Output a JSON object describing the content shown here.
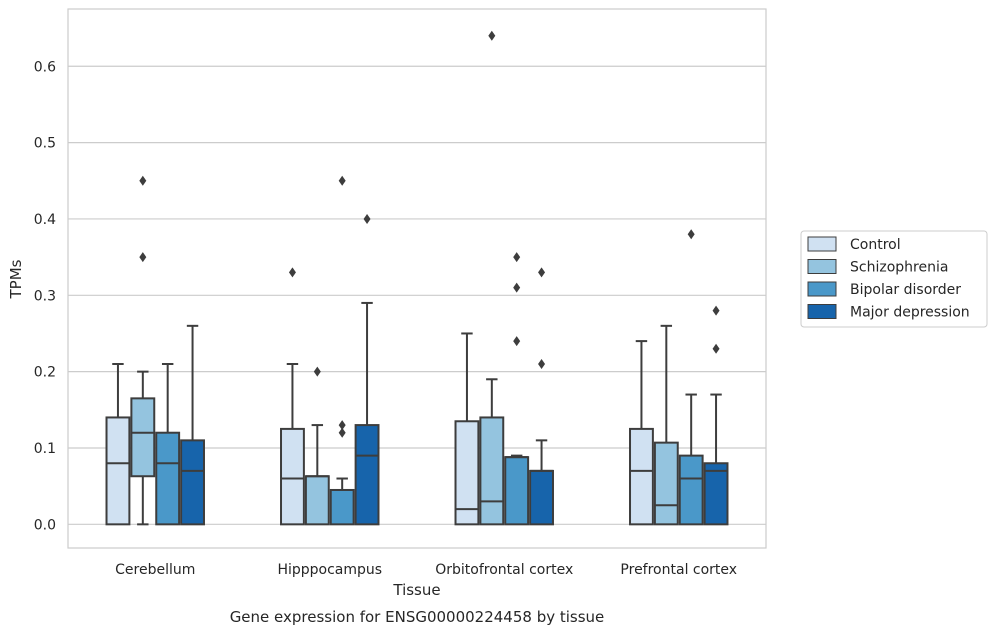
{
  "chart_data": {
    "type": "box",
    "caption": "Gene expression for ENSG00000224458 by tissue",
    "xlabel": "Tissue",
    "ylabel": "TPMs",
    "ylim": [
      -0.031,
      0.675
    ],
    "yticks": [
      "0.0",
      "0.1",
      "0.2",
      "0.3",
      "0.4",
      "0.5",
      "0.6"
    ],
    "grid": "horizontal",
    "legend_position": "right, outside plot",
    "categories": [
      "Cerebellum",
      "Hipppocampus",
      "Orbitofrontal cortex",
      "Prefrontal cortex"
    ],
    "series": [
      {
        "name": "Control",
        "color": "#d0e1f2",
        "boxes": [
          {
            "q1": 0.0,
            "median": 0.08,
            "q3": 0.14,
            "whisker_low": 0.0,
            "whisker_high": 0.21,
            "outliers": []
          },
          {
            "q1": 0.0,
            "median": 0.06,
            "q3": 0.125,
            "whisker_low": 0.0,
            "whisker_high": 0.21,
            "outliers": [
              0.33
            ]
          },
          {
            "q1": 0.0,
            "median": 0.02,
            "q3": 0.135,
            "whisker_low": 0.0,
            "whisker_high": 0.25,
            "outliers": []
          },
          {
            "q1": 0.0,
            "median": 0.07,
            "q3": 0.125,
            "whisker_low": 0.0,
            "whisker_high": 0.24,
            "outliers": []
          }
        ]
      },
      {
        "name": "Schizophrenia",
        "color": "#94c4df",
        "boxes": [
          {
            "q1": 0.063,
            "median": 0.12,
            "q3": 0.165,
            "whisker_low": 0.0,
            "whisker_high": 0.2,
            "outliers": [
              0.35,
              0.45
            ]
          },
          {
            "q1": 0.0,
            "median": 0.063,
            "q3": 0.063,
            "whisker_low": 0.0,
            "whisker_high": 0.13,
            "outliers": [
              0.2
            ]
          },
          {
            "q1": 0.0,
            "median": 0.03,
            "q3": 0.14,
            "whisker_low": 0.0,
            "whisker_high": 0.19,
            "outliers": [
              0.64
            ]
          },
          {
            "q1": 0.0,
            "median": 0.025,
            "q3": 0.107,
            "whisker_low": 0.0,
            "whisker_high": 0.26,
            "outliers": []
          }
        ]
      },
      {
        "name": "Bipolar disorder",
        "color": "#4a98c9",
        "boxes": [
          {
            "q1": 0.0,
            "median": 0.08,
            "q3": 0.12,
            "whisker_low": 0.0,
            "whisker_high": 0.21,
            "outliers": []
          },
          {
            "q1": 0.0,
            "median": 0.045,
            "q3": 0.045,
            "whisker_low": 0.0,
            "whisker_high": 0.06,
            "outliers": [
              0.12,
              0.13,
              0.45
            ]
          },
          {
            "q1": 0.0,
            "median": 0.088,
            "q3": 0.088,
            "whisker_low": 0.0,
            "whisker_high": 0.09,
            "outliers": [
              0.24,
              0.31,
              0.35
            ]
          },
          {
            "q1": 0.0,
            "median": 0.06,
            "q3": 0.09,
            "whisker_low": 0.0,
            "whisker_high": 0.17,
            "outliers": [
              0.38
            ]
          }
        ]
      },
      {
        "name": "Major depression",
        "color": "#1764ab",
        "boxes": [
          {
            "q1": 0.0,
            "median": 0.07,
            "q3": 0.11,
            "whisker_low": 0.0,
            "whisker_high": 0.26,
            "outliers": []
          },
          {
            "q1": 0.0,
            "median": 0.09,
            "q3": 0.13,
            "whisker_low": 0.0,
            "whisker_high": 0.29,
            "outliers": [
              0.4
            ]
          },
          {
            "q1": 0.0,
            "median": 0.07,
            "q3": 0.07,
            "whisker_low": 0.0,
            "whisker_high": 0.11,
            "outliers": [
              0.21,
              0.33
            ]
          },
          {
            "q1": 0.0,
            "median": 0.07,
            "q3": 0.08,
            "whisker_low": 0.0,
            "whisker_high": 0.17,
            "outliers": [
              0.23,
              0.28
            ]
          }
        ]
      }
    ]
  }
}
